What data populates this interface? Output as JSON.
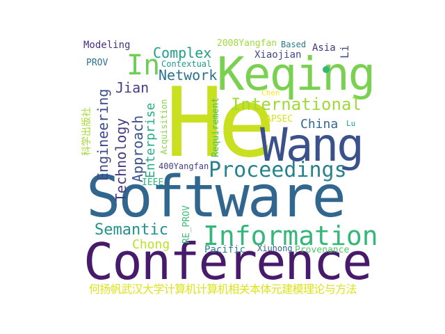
{
  "words": [
    {
      "id": "conference",
      "text": "Conference",
      "color": "#481a6c"
    },
    {
      "id": "software",
      "text": "Software",
      "color": "#31668e"
    },
    {
      "id": "he",
      "text": "He",
      "color": "#c8e020"
    },
    {
      "id": "keqing",
      "text": "Keqing",
      "color": "#7ad151"
    },
    {
      "id": "wang",
      "text": "Wang",
      "color": "#3b518b"
    },
    {
      "id": "information",
      "text": "Information",
      "color": "#35b779"
    },
    {
      "id": "proceedings",
      "text": "Proceedings",
      "color": "#26828e"
    },
    {
      "id": "international",
      "text": "International",
      "color": "#a0da39"
    },
    {
      "id": "semantic",
      "text": "Semantic",
      "color": "#21918c"
    },
    {
      "id": "complex",
      "text": "Complex",
      "color": "#1f9e89"
    },
    {
      "id": "in",
      "text": "In",
      "color": "#6ece58"
    },
    {
      "id": "network",
      "text": "Network",
      "color": "#2c728e"
    },
    {
      "id": "jian",
      "text": "Jian",
      "color": "#433e85"
    },
    {
      "id": "chong",
      "text": "Chong",
      "color": "#bddf26"
    },
    {
      "id": "china",
      "text": "China",
      "color": "#31688e"
    },
    {
      "id": "engineering",
      "text": "Engineering",
      "color": "#3e4a89"
    },
    {
      "id": "technology",
      "text": "Technology",
      "color": "#443983"
    },
    {
      "id": "approach",
      "text": "Approach",
      "color": "#3b528b"
    },
    {
      "id": "enterprise",
      "text": "Enterprise",
      "color": "#25ab82"
    },
    {
      "id": "yangfan2008",
      "text": "2008Yangfan",
      "color": "#9fda3a"
    },
    {
      "id": "based",
      "text": "Based",
      "color": "#2a788e"
    },
    {
      "id": "asia",
      "text": "Asia",
      "color": "#46337e"
    },
    {
      "id": "li",
      "text": "Li",
      "color": "#3e4c8a"
    },
    {
      "id": "xiaojian",
      "text": "Xiaojian",
      "color": "#404688"
    },
    {
      "id": "modeling",
      "text": "Modeling",
      "color": "#46327e"
    },
    {
      "id": "contextual",
      "text": "Contextual",
      "color": "#1e9b8a"
    },
    {
      "id": "prov",
      "text": "PROV",
      "color": "#2c718e"
    },
    {
      "id": "chen",
      "text": "Chen",
      "color": "#fde725"
    },
    {
      "id": "apsec",
      "text": "APSEC",
      "color": "#d8e219"
    },
    {
      "id": "lu",
      "text": "Lu",
      "color": "#1e9d89"
    },
    {
      "id": "requirement",
      "text": "Requirement",
      "color": "#4ac16d"
    },
    {
      "id": "acquisition",
      "text": "Acquisition",
      "color": "#86d549"
    },
    {
      "id": "yangfan400",
      "text": "400Yangfan",
      "color": "#424086"
    },
    {
      "id": "ieee",
      "text": "IEEE",
      "color": "#2db27d"
    },
    {
      "id": "re_prov",
      "text": "RE_PROV",
      "color": "#3dbc74"
    },
    {
      "id": "pacific",
      "text": "Pacific",
      "color": "#277f8e"
    },
    {
      "id": "xiuhong",
      "text": "Xiuhong",
      "color": "#33638d"
    },
    {
      "id": "provenance",
      "text": "Provenance",
      "color": "#52c569"
    },
    {
      "id": "publisher",
      "text": "科学出版社",
      "color": "#a5db36"
    },
    {
      "id": "bottom",
      "text": "何扬帆武汉大学计算机计算机相关本体元建模理论与方法",
      "color": "#dde318"
    }
  ]
}
